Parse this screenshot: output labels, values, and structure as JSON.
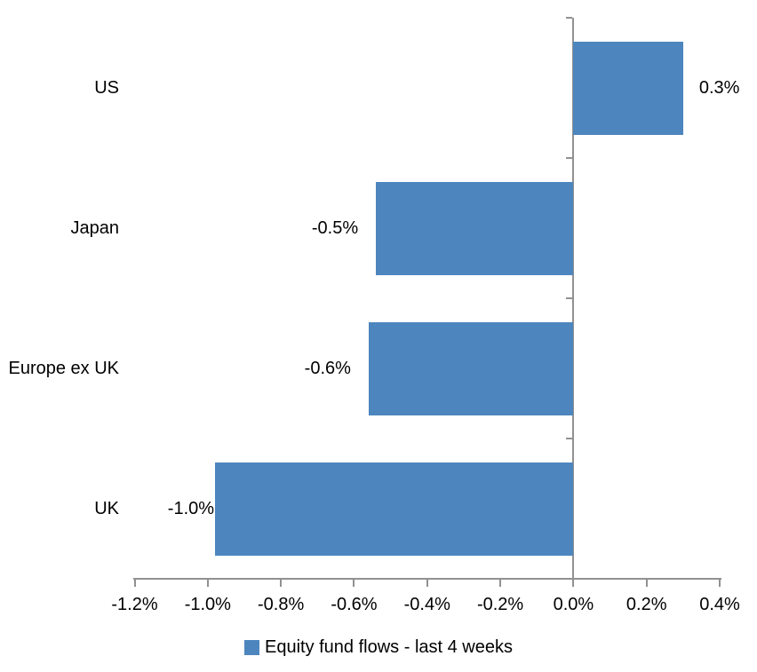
{
  "chart_data": {
    "type": "bar",
    "orientation": "horizontal",
    "title": "",
    "xlabel": "",
    "ylabel": "",
    "grid": false,
    "categories": [
      "US",
      "Japan",
      "Europe ex UK",
      "UK"
    ],
    "values": [
      0.3,
      -0.54,
      -0.56,
      -0.98
    ],
    "value_labels": [
      "0.3%",
      "-0.5%",
      "-0.6%",
      "-1.0%"
    ],
    "series": [
      {
        "name": "Equity fund flows - last 4 weeks",
        "values": [
          0.3,
          -0.54,
          -0.56,
          -0.98
        ]
      }
    ],
    "x_axis": {
      "min": -1.2,
      "max": 0.4,
      "tick_values": [
        -1.2,
        -1.0,
        -0.8,
        -0.6,
        -0.4,
        -0.2,
        0.0,
        0.2,
        0.4
      ],
      "ticks": [
        "-1.2%",
        "-1.0%",
        "-0.8%",
        "-0.6%",
        "-0.4%",
        "-0.2%",
        "0.0%",
        "0.2%",
        "0.4%"
      ]
    },
    "legend": {
      "label": "Equity fund flows - last 4 weeks",
      "position": "bottom",
      "swatch_color": "#4D86BE"
    },
    "bar_color": "#4D86BE",
    "axis_color": "#919191",
    "text_color": "#000000"
  }
}
